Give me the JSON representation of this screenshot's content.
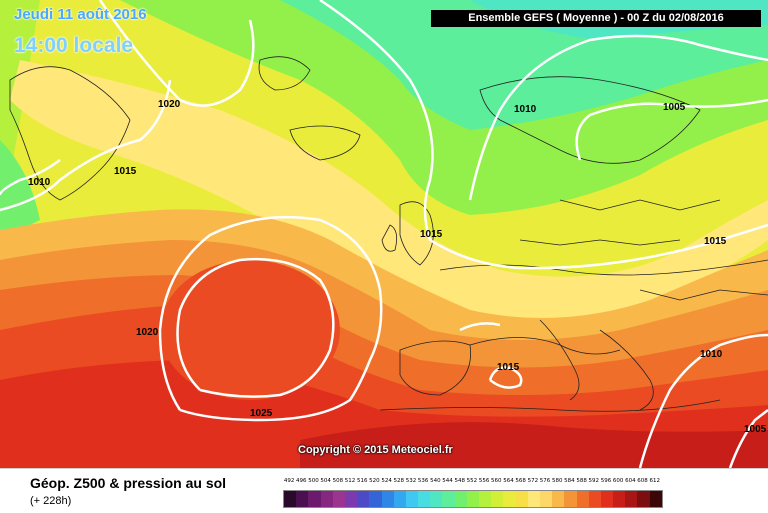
{
  "header": {
    "date": "Jeudi 11 août 2016",
    "time": "14:00 locale",
    "run_info": "Ensemble GEFS  ( Moyenne )  -  00 Z du 02/08/2016"
  },
  "copyright": "Copyright © 2015 Meteociel.fr",
  "isobars": {
    "label_1020_north": "1020",
    "label_1015_greenland": "1015",
    "label_1010_west": "1010",
    "label_1010_norway": "1010",
    "label_1005_scandinavia": "1005",
    "label_1015_uk": "1015",
    "label_1015_east": "1015",
    "label_1020_atlantic": "1020",
    "label_1025_high": "1025",
    "label_1015_spain": "1015",
    "label_1010_balkans": "1010",
    "label_1005_southeast": "1005"
  },
  "footer": {
    "title": "Géop. Z500 & pression au sol",
    "subtitle": "(+ 228h)"
  },
  "scale": {
    "ticks": [
      "492",
      "496",
      "500",
      "504",
      "508",
      "512",
      "516",
      "520",
      "524",
      "528",
      "532",
      "536",
      "540",
      "544",
      "548",
      "552",
      "556",
      "560",
      "564",
      "568",
      "572",
      "576",
      "580",
      "584",
      "588",
      "592",
      "596",
      "600",
      "604",
      "608",
      "612"
    ],
    "colors": [
      "#2a0a2a",
      "#4b1050",
      "#6b1a6e",
      "#86287f",
      "#9c3591",
      "#7a3bb0",
      "#4e49c7",
      "#3364d8",
      "#2f86e6",
      "#33a7ef",
      "#3ec8f2",
      "#47dde2",
      "#4fe7c3",
      "#5cee9b",
      "#72f06d",
      "#93f04b",
      "#b5f03c",
      "#d2ef38",
      "#e9ec3a",
      "#f7e046",
      "#ffe77a",
      "#fcd868",
      "#f9b84a",
      "#f49438",
      "#ef6f2a",
      "#ea4b23",
      "#e0301d",
      "#c81e1a",
      "#a71515",
      "#7c0e0f",
      "#3d0606"
    ]
  }
}
